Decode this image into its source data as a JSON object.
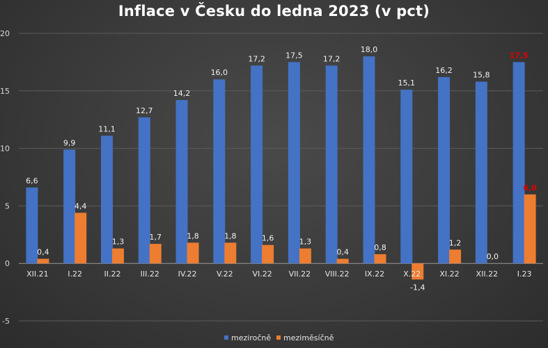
{
  "chart_data": {
    "type": "bar",
    "title": "Inflace v Česku do ledna 2023 (v pct)",
    "categories": [
      "XII.21",
      "I.22",
      "II.22",
      "III.22",
      "IV.22",
      "V.22",
      "VI.22",
      "VII.22",
      "VIII.22",
      "IX.22",
      "X.22",
      "XI.22",
      "XII.22",
      "I.23"
    ],
    "series": [
      {
        "name": "meziročně",
        "color": "#4472c4",
        "values": [
          6.6,
          9.9,
          11.1,
          12.7,
          14.2,
          16.0,
          17.2,
          17.5,
          17.2,
          18.0,
          15.1,
          16.2,
          15.8,
          17.5
        ],
        "labels": [
          "6,6",
          "9,9",
          "11,1",
          "12,7",
          "14,2",
          "16,0",
          "17,2",
          "17,5",
          "17,2",
          "18,0",
          "15,1",
          "16,2",
          "15,8",
          "17,5"
        ]
      },
      {
        "name": "meziměsíčně",
        "color": "#ed7d31",
        "values": [
          0.4,
          4.4,
          1.3,
          1.7,
          1.8,
          1.8,
          1.6,
          1.3,
          0.4,
          0.8,
          -1.4,
          1.2,
          0.0,
          6.0
        ],
        "labels": [
          "0,4",
          "4,4",
          "1,3",
          "1,7",
          "1,8",
          "1,8",
          "1,6",
          "1,3",
          "0,4",
          "0,8",
          "-1,4",
          "1,2",
          "0,0",
          "6,0"
        ]
      }
    ],
    "highlight_category": "I.23",
    "highlight_color": "#e00000",
    "ylim": [
      -5,
      20
    ],
    "yticks": [
      -5,
      0,
      5,
      10,
      15,
      20
    ],
    "grid": true,
    "legend": "bottom-center",
    "xlabel": "",
    "ylabel": ""
  }
}
